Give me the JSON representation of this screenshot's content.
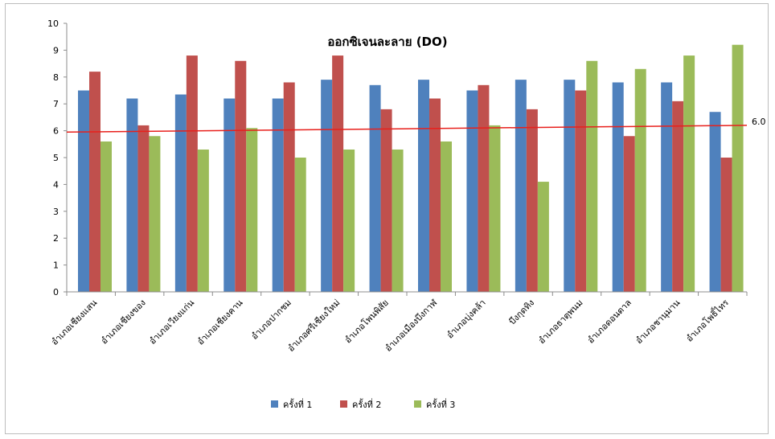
{
  "chart_data": {
    "type": "bar",
    "title": "ออกซิเจนละลาย (DO)",
    "xlabel": "",
    "ylabel": "",
    "ylim": [
      0,
      10
    ],
    "yticks": [
      "0",
      "1",
      "2",
      "3",
      "4",
      "5",
      "6",
      "7",
      "8",
      "9",
      "10"
    ],
    "grid": false,
    "legend_position": "bottom",
    "categories": [
      "อำเภอเชียงแสน",
      "อำเภอเชียงของ",
      "อำเภอเวียงแก่น",
      "อำเภอเชียงคาน",
      "อำเภอปากชม",
      "อำเภอศรีเชียงใหม่",
      "อำเภอโพนพิสัย",
      "อำเภอเมืองบึงกาฬ",
      "อำเภอบุ่งคล้า",
      "บึงกุดทิง",
      "อำเภอธาตุพนม",
      "อำเภอดอนตาล",
      "อำเภอชานุมาน",
      "อำเภอโพธิ์ไทร"
    ],
    "series": [
      {
        "name": "ครั้งที่ 1",
        "color": "#4F81BD",
        "values": [
          7.5,
          7.2,
          7.35,
          7.2,
          7.2,
          7.9,
          7.7,
          7.9,
          7.5,
          7.9,
          7.9,
          7.8,
          7.8,
          6.7
        ]
      },
      {
        "name": "ครั้งที่ 2",
        "color": "#C0504D",
        "values": [
          8.2,
          6.2,
          8.8,
          8.6,
          7.8,
          8.8,
          6.8,
          7.2,
          7.7,
          6.8,
          7.5,
          5.8,
          7.1,
          5.0
        ]
      },
      {
        "name": "ครั้งที่ 3",
        "color": "#9BBB59",
        "values": [
          5.6,
          5.8,
          5.3,
          6.1,
          5.0,
          5.3,
          5.3,
          5.6,
          6.2,
          4.1,
          8.6,
          8.3,
          8.8,
          9.2
        ]
      }
    ],
    "reference_line": {
      "label": "6.0",
      "start_value": 5.95,
      "end_value": 6.2,
      "color": "#E8201C"
    }
  }
}
